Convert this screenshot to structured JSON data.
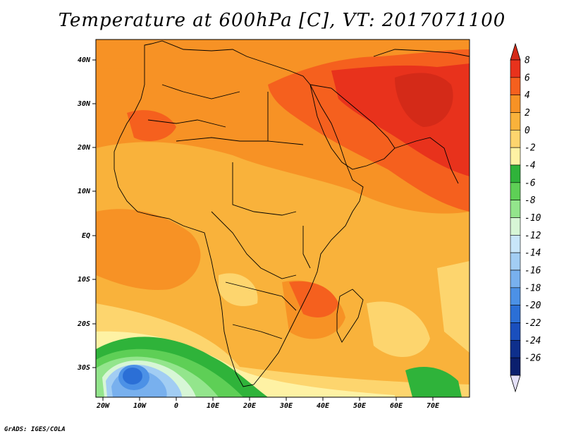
{
  "title": "Temperature at 600hPa [C], VT: 2017071100",
  "credit": "GrADS: IGES/COLA",
  "map": {
    "lon_labels": [
      "20W",
      "10W",
      "0",
      "10E",
      "20E",
      "30E",
      "40E",
      "50E",
      "60E",
      "70E"
    ],
    "lat_labels": [
      "40N",
      "30N",
      "20N",
      "10N",
      "EQ",
      "10S",
      "20S",
      "30S"
    ]
  },
  "colorbar": {
    "labels": [
      "8",
      "6",
      "4",
      "2",
      "0",
      "-2",
      "-4",
      "-6",
      "-8",
      "-10",
      "-12",
      "-14",
      "-16",
      "-18",
      "-20",
      "-22",
      "-24",
      "-26"
    ],
    "colors": [
      "#e8321c",
      "#f5601e",
      "#f79225",
      "#f9b23b",
      "#fdd56e",
      "#fef2a4",
      "#2fb33a",
      "#5ecf56",
      "#93e58c",
      "#d7f6d6",
      "#c8e6f9",
      "#a2cdf3",
      "#78b0ee",
      "#4c91e6",
      "#2b6fd6",
      "#1a4fbd",
      "#0e2f8c",
      "#0b1f6e"
    ],
    "tip_top_color": "#d42a18",
    "tip_bottom_color": "#e4e0f8"
  }
}
